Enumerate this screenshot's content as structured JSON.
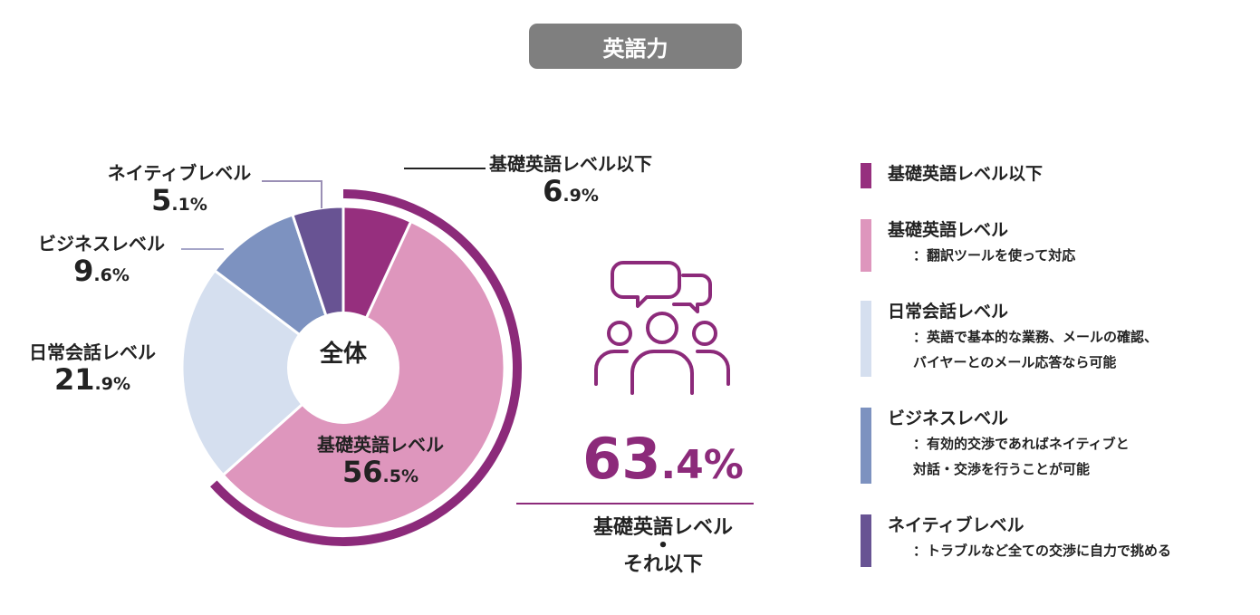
{
  "header": {
    "title": "英語力"
  },
  "chart_data": {
    "type": "pie",
    "center_label": "全体",
    "slices": [
      {
        "name": "基礎英語レベル以下",
        "value": 6.9,
        "int": "6",
        "dec": ".9%",
        "color": "#962f7e"
      },
      {
        "name": "基礎英語レベル",
        "value": 56.5,
        "int": "56",
        "dec": ".5%",
        "color": "#de96bd"
      },
      {
        "name": "日常会話レベル",
        "value": 21.9,
        "int": "21",
        "dec": ".9%",
        "color": "#d5dfef"
      },
      {
        "name": "ビジネスレベル",
        "value": 9.6,
        "int": "9",
        "dec": ".6%",
        "color": "#7d92c0"
      },
      {
        "name": "ネイティブレベル",
        "value": 5.1,
        "int": "5",
        "dec": ".1%",
        "color": "#685393"
      }
    ],
    "highlight": {
      "int": "63",
      "dec": ".4%",
      "caption_line1": "基礎英語レベル",
      "caption_dot": "•",
      "caption_line2": "それ以下",
      "color": "#8c2a7a"
    }
  },
  "legend": {
    "items": [
      {
        "label": "基礎英語レベル以下",
        "desc": "",
        "color": "#962f7e"
      },
      {
        "label": "基礎英語レベル",
        "desc": "：翻訳ツールを使って対応",
        "color": "#de96bd"
      },
      {
        "label": "日常会話レベル",
        "desc": "：英語で基本的な業務、メールの確認、\nバイヤーとのメール応答なら可能",
        "color": "#d5dfef"
      },
      {
        "label": "ビジネスレベル",
        "desc": "：有効的交渉であればネイティブと\n対話・交渉を行うことが可能",
        "color": "#7d92c0"
      },
      {
        "label": "ネイティブレベル",
        "desc": "：トラブルなど全ての交渉に自力で挑める",
        "color": "#685393"
      }
    ]
  }
}
